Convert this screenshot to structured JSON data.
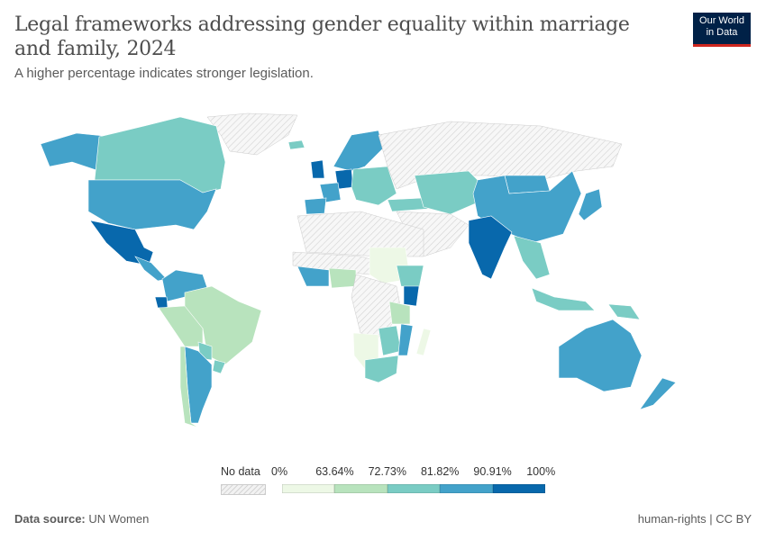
{
  "header": {
    "title": "Legal frameworks addressing gender equality within marriage and family, 2024",
    "subtitle": "A higher percentage indicates stronger legislation.",
    "logo_line1": "Our World",
    "logo_line2": "in Data"
  },
  "footer": {
    "source_label": "Data source:",
    "source": "UN Women",
    "right": "human-rights | CC BY"
  },
  "chart_data": {
    "type": "map",
    "title": "Legal frameworks addressing gender equality within marriage and family, 2024",
    "legend": {
      "no_data_label": "No data",
      "ticks": [
        "0%",
        "63.64%",
        "72.73%",
        "81.82%",
        "90.91%",
        "100%"
      ],
      "bins": [
        {
          "range": [
            0,
            63.64
          ],
          "color": "#edf8e6"
        },
        {
          "range": [
            63.64,
            72.73
          ],
          "color": "#b8e3bd"
        },
        {
          "range": [
            72.73,
            81.82
          ],
          "color": "#7accc4"
        },
        {
          "range": [
            81.82,
            90.91
          ],
          "color": "#43a2ca"
        },
        {
          "range": [
            90.91,
            100
          ],
          "color": "#0868ac"
        }
      ],
      "no_data_color": "#f2f2f2"
    },
    "regions": [
      {
        "name": "Canada",
        "bin": 2
      },
      {
        "name": "Alaska (USA)",
        "bin": 3
      },
      {
        "name": "United States",
        "bin": 3
      },
      {
        "name": "Mexico",
        "bin": 4
      },
      {
        "name": "Central America",
        "bin": 3
      },
      {
        "name": "Greenland",
        "bin": -1
      },
      {
        "name": "Colombia/Venezuela",
        "bin": 3
      },
      {
        "name": "Ecuador",
        "bin": 4
      },
      {
        "name": "Brazil",
        "bin": 1
      },
      {
        "name": "Peru/Bolivia",
        "bin": 1
      },
      {
        "name": "Paraguay",
        "bin": 2
      },
      {
        "name": "Argentina",
        "bin": 3
      },
      {
        "name": "Chile",
        "bin": 1
      },
      {
        "name": "Uruguay",
        "bin": 2
      },
      {
        "name": "Iceland",
        "bin": 2
      },
      {
        "name": "Scandinavia",
        "bin": 3
      },
      {
        "name": "United Kingdom",
        "bin": 4
      },
      {
        "name": "France",
        "bin": 3
      },
      {
        "name": "Spain",
        "bin": 3
      },
      {
        "name": "Germany",
        "bin": 4
      },
      {
        "name": "Eastern Europe",
        "bin": 2
      },
      {
        "name": "Russia",
        "bin": -1
      },
      {
        "name": "Middle East",
        "bin": -1
      },
      {
        "name": "Turkey",
        "bin": 2
      },
      {
        "name": "Kazakhstan/Central Asia",
        "bin": 2
      },
      {
        "name": "Mongolia",
        "bin": 3
      },
      {
        "name": "China",
        "bin": 3
      },
      {
        "name": "India",
        "bin": 4
      },
      {
        "name": "South-East Asia",
        "bin": 2
      },
      {
        "name": "Japan",
        "bin": 3
      },
      {
        "name": "Indonesia",
        "bin": 2
      },
      {
        "name": "Papua New Guinea",
        "bin": 2
      },
      {
        "name": "Australia",
        "bin": 3
      },
      {
        "name": "New Zealand",
        "bin": 3
      },
      {
        "name": "North Africa",
        "bin": -1
      },
      {
        "name": "Sahel",
        "bin": -1
      },
      {
        "name": "West Africa",
        "bin": 3
      },
      {
        "name": "Nigeria",
        "bin": 1
      },
      {
        "name": "Sudan/Chad",
        "bin": 0
      },
      {
        "name": "Central Africa",
        "bin": -1
      },
      {
        "name": "Ethiopia",
        "bin": 2
      },
      {
        "name": "Kenya",
        "bin": 4
      },
      {
        "name": "Tanzania",
        "bin": 1
      },
      {
        "name": "Angola/Namibia",
        "bin": 0
      },
      {
        "name": "Zambia/Zimbabwe",
        "bin": 2
      },
      {
        "name": "Mozambique",
        "bin": 3
      },
      {
        "name": "South Africa",
        "bin": 2
      },
      {
        "name": "Madagascar",
        "bin": 0
      }
    ]
  }
}
